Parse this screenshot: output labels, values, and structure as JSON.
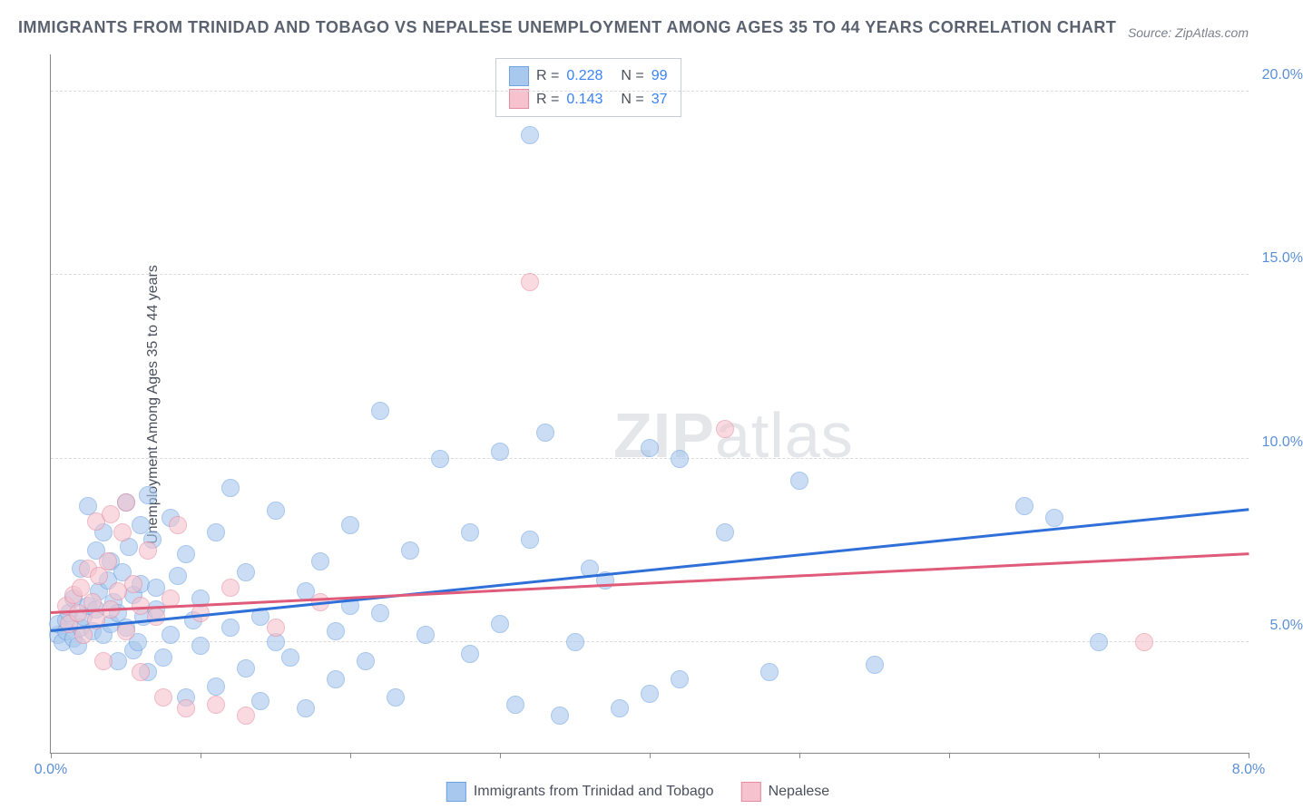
{
  "title": "IMMIGRANTS FROM TRINIDAD AND TOBAGO VS NEPALESE UNEMPLOYMENT AMONG AGES 35 TO 44 YEARS CORRELATION CHART",
  "source": "Source: ZipAtlas.com",
  "watermark_part1": "ZIP",
  "watermark_part2": "atlas",
  "ylabel": "Unemployment Among Ages 35 to 44 years",
  "chart": {
    "type": "scatter",
    "xlim": [
      0,
      8
    ],
    "ylim": [
      2,
      21
    ],
    "xticks": [
      0,
      1,
      2,
      3,
      4,
      5,
      6,
      7,
      8
    ],
    "xtick_labels": {
      "0": "0.0%",
      "8": "8.0%"
    },
    "yticks": [
      5,
      10,
      15,
      20
    ],
    "ytick_labels": [
      "5.0%",
      "10.0%",
      "15.0%",
      "20.0%"
    ],
    "grid_color": "#d8dbe0",
    "background": "#ffffff",
    "series": [
      {
        "name": "Immigrants from Trinidad and Tobago",
        "color_fill": "#a8c8ed",
        "color_stroke": "#6da3e0",
        "R": "0.228",
        "N": "99",
        "trend": {
          "x1": 0,
          "y1": 5.3,
          "x2": 8,
          "y2": 8.6,
          "color": "#2f6fd8"
        },
        "points": [
          [
            0.05,
            5.2
          ],
          [
            0.05,
            5.5
          ],
          [
            0.08,
            5.0
          ],
          [
            0.1,
            5.3
          ],
          [
            0.1,
            5.6
          ],
          [
            0.12,
            5.8
          ],
          [
            0.15,
            5.1
          ],
          [
            0.15,
            6.2
          ],
          [
            0.18,
            4.9
          ],
          [
            0.2,
            5.4
          ],
          [
            0.2,
            7.0
          ],
          [
            0.22,
            5.7
          ],
          [
            0.25,
            6.0
          ],
          [
            0.25,
            8.7
          ],
          [
            0.28,
            5.3
          ],
          [
            0.3,
            5.9
          ],
          [
            0.3,
            7.5
          ],
          [
            0.32,
            6.4
          ],
          [
            0.35,
            5.2
          ],
          [
            0.35,
            8.0
          ],
          [
            0.38,
            6.7
          ],
          [
            0.4,
            5.5
          ],
          [
            0.4,
            7.2
          ],
          [
            0.42,
            6.1
          ],
          [
            0.45,
            5.8
          ],
          [
            0.45,
            4.5
          ],
          [
            0.48,
            6.9
          ],
          [
            0.5,
            8.8
          ],
          [
            0.5,
            5.4
          ],
          [
            0.52,
            7.6
          ],
          [
            0.55,
            6.3
          ],
          [
            0.55,
            4.8
          ],
          [
            0.58,
            5.0
          ],
          [
            0.6,
            8.2
          ],
          [
            0.6,
            6.6
          ],
          [
            0.62,
            5.7
          ],
          [
            0.65,
            9.0
          ],
          [
            0.65,
            4.2
          ],
          [
            0.68,
            7.8
          ],
          [
            0.7,
            5.9
          ],
          [
            0.7,
            6.5
          ],
          [
            0.75,
            4.6
          ],
          [
            0.8,
            8.4
          ],
          [
            0.8,
            5.2
          ],
          [
            0.85,
            6.8
          ],
          [
            0.9,
            3.5
          ],
          [
            0.9,
            7.4
          ],
          [
            0.95,
            5.6
          ],
          [
            1.0,
            4.9
          ],
          [
            1.0,
            6.2
          ],
          [
            1.1,
            8.0
          ],
          [
            1.1,
            3.8
          ],
          [
            1.2,
            5.4
          ],
          [
            1.2,
            9.2
          ],
          [
            1.3,
            4.3
          ],
          [
            1.3,
            6.9
          ],
          [
            1.4,
            5.7
          ],
          [
            1.4,
            3.4
          ],
          [
            1.5,
            8.6
          ],
          [
            1.5,
            5.0
          ],
          [
            1.6,
            4.6
          ],
          [
            1.7,
            6.4
          ],
          [
            1.7,
            3.2
          ],
          [
            1.8,
            7.2
          ],
          [
            1.9,
            5.3
          ],
          [
            1.9,
            4.0
          ],
          [
            2.0,
            6.0
          ],
          [
            2.0,
            8.2
          ],
          [
            2.1,
            4.5
          ],
          [
            2.2,
            11.3
          ],
          [
            2.2,
            5.8
          ],
          [
            2.3,
            3.5
          ],
          [
            2.4,
            7.5
          ],
          [
            2.5,
            5.2
          ],
          [
            2.6,
            10.0
          ],
          [
            2.8,
            4.7
          ],
          [
            2.8,
            8.0
          ],
          [
            3.0,
            5.5
          ],
          [
            3.0,
            10.2
          ],
          [
            3.1,
            3.3
          ],
          [
            3.2,
            18.8
          ],
          [
            3.2,
            7.8
          ],
          [
            3.3,
            10.7
          ],
          [
            3.4,
            3.0
          ],
          [
            3.5,
            5.0
          ],
          [
            3.6,
            7.0
          ],
          [
            3.7,
            6.7
          ],
          [
            3.8,
            3.2
          ],
          [
            4.0,
            10.3
          ],
          [
            4.0,
            3.6
          ],
          [
            4.2,
            10.0
          ],
          [
            4.2,
            4.0
          ],
          [
            4.5,
            8.0
          ],
          [
            4.8,
            4.2
          ],
          [
            5.0,
            9.4
          ],
          [
            5.5,
            4.4
          ],
          [
            6.5,
            8.7
          ],
          [
            6.7,
            8.4
          ],
          [
            7.0,
            5.0
          ]
        ]
      },
      {
        "name": "Nepalese",
        "color_fill": "#f5c2cd",
        "color_stroke": "#e88ba0",
        "R": "0.143",
        "N": "37",
        "trend": {
          "x1": 0,
          "y1": 5.8,
          "x2": 8,
          "y2": 7.4,
          "color": "#e05a7a"
        },
        "points": [
          [
            0.1,
            6.0
          ],
          [
            0.12,
            5.5
          ],
          [
            0.15,
            6.3
          ],
          [
            0.18,
            5.8
          ],
          [
            0.2,
            6.5
          ],
          [
            0.22,
            5.2
          ],
          [
            0.25,
            7.0
          ],
          [
            0.28,
            6.1
          ],
          [
            0.3,
            5.6
          ],
          [
            0.3,
            8.3
          ],
          [
            0.32,
            6.8
          ],
          [
            0.35,
            4.5
          ],
          [
            0.38,
            7.2
          ],
          [
            0.4,
            5.9
          ],
          [
            0.4,
            8.5
          ],
          [
            0.45,
            6.4
          ],
          [
            0.48,
            8.0
          ],
          [
            0.5,
            5.3
          ],
          [
            0.5,
            8.8
          ],
          [
            0.55,
            6.6
          ],
          [
            0.6,
            4.2
          ],
          [
            0.6,
            6.0
          ],
          [
            0.65,
            7.5
          ],
          [
            0.7,
            5.7
          ],
          [
            0.75,
            3.5
          ],
          [
            0.8,
            6.2
          ],
          [
            0.85,
            8.2
          ],
          [
            0.9,
            3.2
          ],
          [
            1.0,
            5.8
          ],
          [
            1.1,
            3.3
          ],
          [
            1.2,
            6.5
          ],
          [
            1.3,
            3.0
          ],
          [
            1.8,
            6.1
          ],
          [
            3.2,
            14.8
          ],
          [
            4.5,
            10.8
          ],
          [
            7.3,
            5.0
          ],
          [
            1.5,
            5.4
          ]
        ]
      }
    ]
  },
  "legend_box": {
    "rows": [
      {
        "swatch_fill": "#a8c8ed",
        "swatch_stroke": "#6da3e0",
        "r_label": "R =",
        "r_val": "0.228",
        "n_label": "N =",
        "n_val": "99"
      },
      {
        "swatch_fill": "#f5c2cd",
        "swatch_stroke": "#e88ba0",
        "r_label": "R =",
        "r_val": "0.143",
        "n_label": "N =",
        "n_val": "37"
      }
    ]
  },
  "bottom_legend": [
    {
      "swatch_fill": "#a8c8ed",
      "swatch_stroke": "#6da3e0",
      "label": "Immigrants from Trinidad and Tobago"
    },
    {
      "swatch_fill": "#f5c2cd",
      "swatch_stroke": "#e88ba0",
      "label": "Nepalese"
    }
  ]
}
